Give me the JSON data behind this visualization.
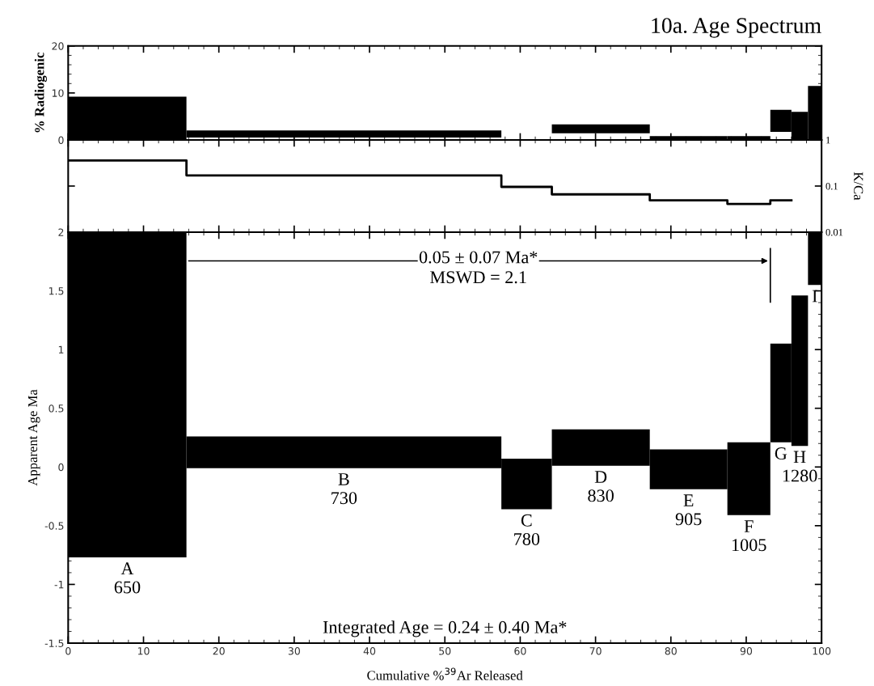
{
  "chart_data": [
    {
      "type": "histogram",
      "title": "10a. Age Spectrum",
      "ylabel": "% Radiogenic",
      "bins": [
        0,
        15.7,
        57.5,
        64.2,
        77.2,
        87.5,
        93.2,
        96.0,
        98.2,
        100
      ],
      "base": [
        0,
        0.5,
        null,
        1.4,
        0,
        0,
        1.7,
        0,
        0
      ],
      "values": [
        9.2,
        1.5,
        null,
        1.9,
        0.8,
        0.8,
        4.7,
        6.0,
        11.5
      ],
      "color": "#000000",
      "xlim": [
        0,
        100
      ],
      "xticks": [
        0,
        10,
        20,
        30,
        40,
        50,
        60,
        70,
        80,
        90,
        100
      ],
      "ylim": [
        0,
        20
      ],
      "yticks": [
        0,
        10,
        20
      ],
      "tick_labels": "y",
      "grid": false,
      "legend": false
    },
    {
      "type": "step",
      "ylabel": "K/Ca",
      "log": "y",
      "x": [
        0,
        15.7,
        57.5,
        64.2,
        77.2,
        87.5,
        93.2,
        96.0
      ],
      "values": [
        0.36,
        0.17,
        0.096,
        0.066,
        0.049,
        0.041,
        0.049,
        0.049
      ],
      "color": "#000000",
      "xlim": [
        0,
        100
      ],
      "xticks": [
        0,
        10,
        20,
        30,
        40,
        50,
        60,
        70,
        80,
        90,
        100
      ],
      "ylim": [
        0.01,
        1
      ],
      "yticks": [
        0.01,
        0.1,
        1
      ],
      "tick_labels": "y",
      "grid": false,
      "legend": false
    },
    {
      "type": "histogram",
      "xlabel": "Cumulative %$^{39}$Ar Released",
      "ylabel": "Apparent Age Ma",
      "bins": [
        0,
        15.7,
        57.5,
        64.2,
        77.2,
        87.5,
        93.2,
        96.0,
        98.2,
        100
      ],
      "base": [
        -0.77,
        -0.01,
        -0.36,
        0.01,
        -0.19,
        -0.41,
        0.21,
        0.18,
        1.55
      ],
      "values": [
        2.77,
        0.27,
        0.43,
        0.31,
        0.34,
        0.62,
        0.84,
        1.28,
        0.45
      ],
      "color": "#000000",
      "xlim": [
        0,
        100
      ],
      "xticks": [
        0,
        10,
        20,
        30,
        40,
        50,
        60,
        70,
        80,
        90,
        100
      ],
      "ylim": [
        -1.5,
        2
      ],
      "yticks": [
        -1.5,
        -1,
        -0.5,
        0,
        0.5,
        1,
        1.5,
        2
      ],
      "grid": false,
      "legend": false,
      "value_labels": [
        "A\n650",
        "B\n730",
        "C\n780",
        "D\n830",
        "E\n905",
        "F\n1005",
        "G",
        "H\n1280",
        "I"
      ],
      "annotations": [
        "0.05 ± 0.07 Ma*\nMSWD = 2.1",
        "Integrated Age = 0.24 ± 0.40 Ma*"
      ]
    }
  ]
}
